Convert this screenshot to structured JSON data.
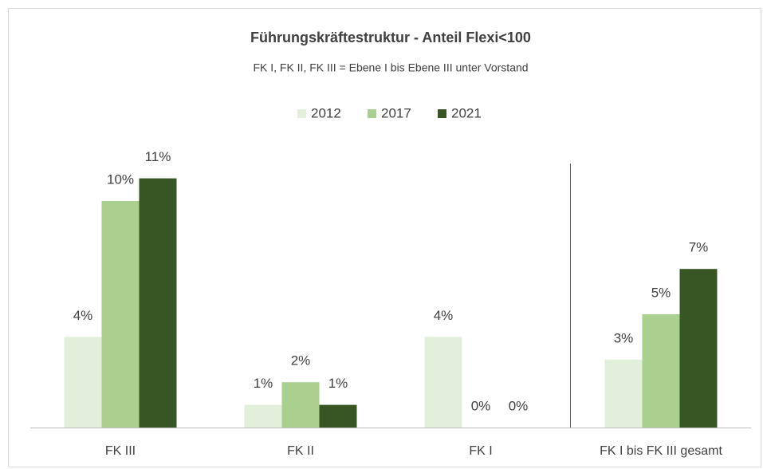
{
  "chart_data": {
    "type": "bar",
    "title": "Führungskräftestruktur  - Anteil Flexi<100",
    "subtitle": "FK I, FK II, FK III = Ebene I bis Ebene III unter Vorstand",
    "categories": [
      "FK III",
      "FK II",
      "FK I",
      "FK I bis FK III gesamt"
    ],
    "series": [
      {
        "name": "2012",
        "color": "#e2efda",
        "values": [
          4,
          1,
          4,
          3
        ],
        "value_labels": [
          "4%",
          "1%",
          "4%",
          "3%"
        ]
      },
      {
        "name": "2017",
        "color": "#a9d08e",
        "values": [
          10,
          2,
          0,
          5
        ],
        "value_labels": [
          "10%",
          "2%",
          "0%",
          "5%"
        ]
      },
      {
        "name": "2021",
        "color": "#375623",
        "values": [
          11,
          1,
          0,
          7
        ],
        "value_labels": [
          "11%",
          "1%",
          "0%",
          "7%"
        ]
      }
    ],
    "legend": "top"
  }
}
